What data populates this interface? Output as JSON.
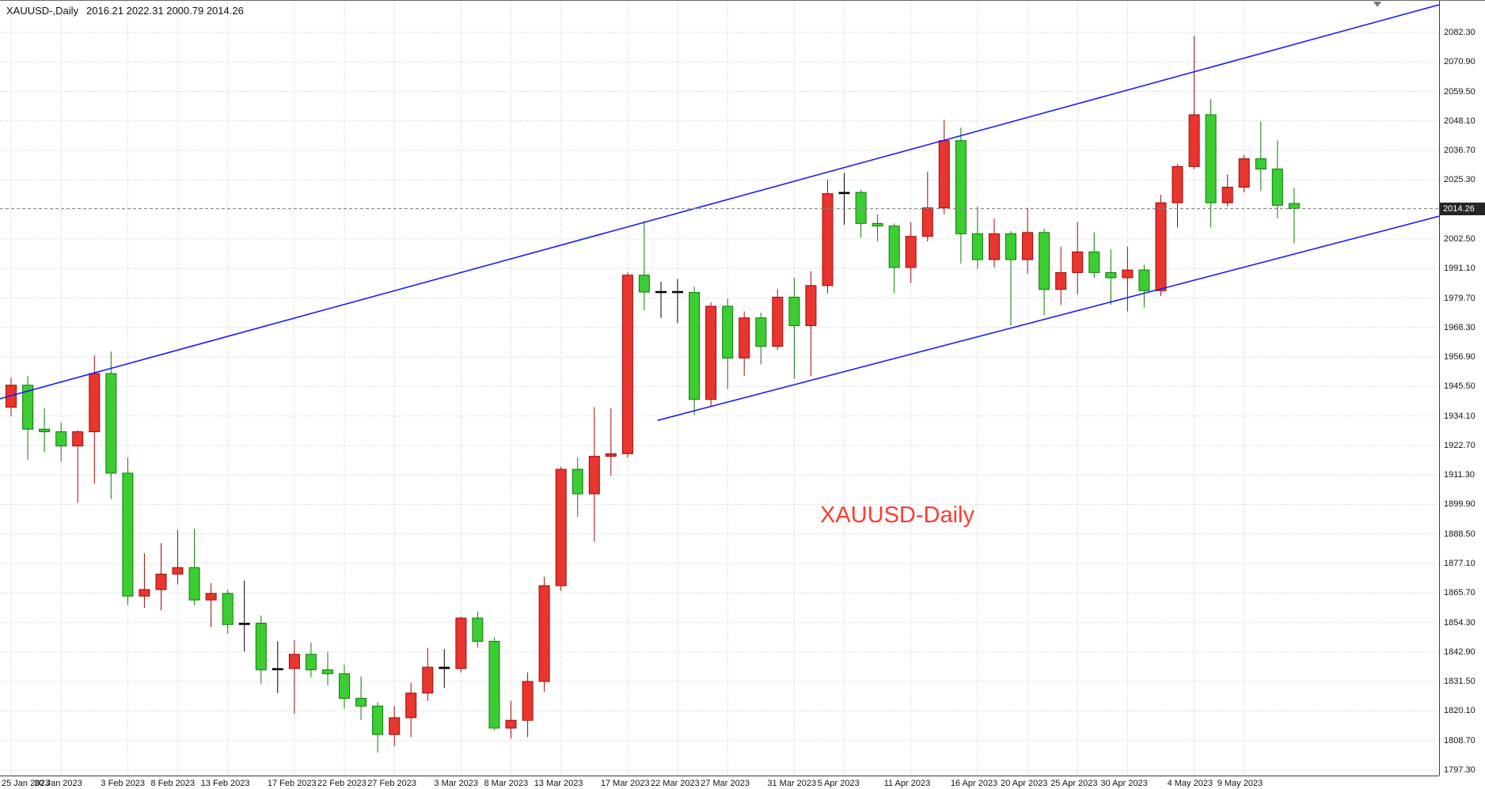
{
  "window": {
    "title_symbol": "XAUUSD-,Daily",
    "title_ohlc": "2016.21 2022.31 2000.79 2014.26"
  },
  "price_axis": {
    "current_price": "2014.26"
  },
  "chart_data": {
    "type": "candlestick",
    "symbol": "XAUUSD",
    "timeframe": "Daily",
    "annotation": {
      "text": "XAUUSD-Daily",
      "color": "#ff3b2e"
    },
    "current_bar_ohlc": {
      "open": 2016.21,
      "high": 2022.31,
      "low": 2000.79,
      "close": 2014.26
    },
    "ylim": [
      1795.1,
      2094.5
    ],
    "grid_price_step": 11.4,
    "grid": true,
    "legend": false,
    "price_ticks": [
      "2082.30",
      "2070.90",
      "2059.50",
      "2048.10",
      "2036.70",
      "2025.30",
      "2013.90",
      "2002.50",
      "1991.10",
      "1979.70",
      "1968.30",
      "1956.90",
      "1945.50",
      "1934.10",
      "1922.70",
      "1911.30",
      "1899.90",
      "1888.50",
      "1877.10",
      "1865.70",
      "1854.30",
      "1842.90",
      "1831.50",
      "1820.10",
      "1808.70",
      "1797.30"
    ],
    "time_labels": [
      {
        "text": "25 Jan 2023",
        "index": 0
      },
      {
        "text": "30 Jan 2023",
        "index": 3
      },
      {
        "text": "3 Feb 2023",
        "index": 7
      },
      {
        "text": "8 Feb 2023",
        "index": 10
      },
      {
        "text": "13 Feb 2023",
        "index": 13
      },
      {
        "text": "17 Feb 2023",
        "index": 17
      },
      {
        "text": "22 Feb 2023",
        "index": 20
      },
      {
        "text": "27 Feb 2023",
        "index": 23
      },
      {
        "text": "3 Mar 2023",
        "index": 27
      },
      {
        "text": "8 Mar 2023",
        "index": 30
      },
      {
        "text": "13 Mar 2023",
        "index": 33
      },
      {
        "text": "17 Mar 2023",
        "index": 37
      },
      {
        "text": "22 Mar 2023",
        "index": 40
      },
      {
        "text": "27 Mar 2023",
        "index": 43
      },
      {
        "text": "31 Mar 2023",
        "index": 47
      },
      {
        "text": "5 Apr 2023",
        "index": 50
      },
      {
        "text": "11 Apr 2023",
        "index": 54
      },
      {
        "text": "16 Apr 2023",
        "index": 58
      },
      {
        "text": "20 Apr 2023",
        "index": 61
      },
      {
        "text": "25 Apr 2023",
        "index": 64
      },
      {
        "text": "30 Apr 2023",
        "index": 67
      },
      {
        "text": "4 May 2023",
        "index": 71
      },
      {
        "text": "9 May 2023",
        "index": 74
      }
    ],
    "candles": [
      [
        1937.5,
        1949.0,
        1934.0,
        1946.0
      ],
      [
        1946.0,
        1949.5,
        1917.0,
        1929.0
      ],
      [
        1929.0,
        1937.0,
        1920.0,
        1928.0
      ],
      [
        1928.0,
        1931.5,
        1916.5,
        1922.5
      ],
      [
        1922.5,
        1928.5,
        1900.5,
        1928.0
      ],
      [
        1928.0,
        1957.5,
        1908.0,
        1950.5
      ],
      [
        1950.5,
        1959.0,
        1902.0,
        1912.0
      ],
      [
        1912.0,
        1918.0,
        1861.0,
        1864.5
      ],
      [
        1864.5,
        1881.0,
        1860.0,
        1867.0
      ],
      [
        1867.0,
        1885.0,
        1859.0,
        1873.0
      ],
      [
        1873.0,
        1890.0,
        1869.0,
        1875.5
      ],
      [
        1875.5,
        1890.5,
        1861.0,
        1863.0
      ],
      [
        1863.0,
        1869.5,
        1852.5,
        1865.5
      ],
      [
        1865.5,
        1867.0,
        1850.0,
        1853.5
      ],
      [
        1853.5,
        1870.5,
        1843.0,
        1854.0
      ],
      [
        1854.0,
        1857.0,
        1830.5,
        1836.0
      ],
      [
        1836.0,
        1847.0,
        1827.0,
        1836.5
      ],
      [
        1836.5,
        1847.5,
        1819.0,
        1842.0
      ],
      [
        1842.0,
        1846.5,
        1833.0,
        1836.0
      ],
      [
        1836.0,
        1843.0,
        1830.0,
        1834.5
      ],
      [
        1834.5,
        1838.0,
        1821.0,
        1825.0
      ],
      [
        1825.0,
        1833.5,
        1816.5,
        1822.0
      ],
      [
        1822.0,
        1823.5,
        1804.0,
        1811.0
      ],
      [
        1811.0,
        1822.0,
        1806.5,
        1817.5
      ],
      [
        1817.5,
        1831.0,
        1810.0,
        1827.0
      ],
      [
        1827.0,
        1844.5,
        1824.0,
        1837.0
      ],
      [
        1837.0,
        1844.0,
        1829.0,
        1836.5
      ],
      [
        1836.5,
        1856.5,
        1835.0,
        1856.0
      ],
      [
        1856.0,
        1858.5,
        1844.5,
        1847.0
      ],
      [
        1847.0,
        1848.5,
        1812.5,
        1813.5
      ],
      [
        1813.5,
        1824.0,
        1809.5,
        1816.5
      ],
      [
        1816.5,
        1835.0,
        1810.0,
        1831.5
      ],
      [
        1831.5,
        1872.0,
        1827.5,
        1868.5
      ],
      [
        1868.5,
        1914.5,
        1866.5,
        1913.5
      ],
      [
        1913.5,
        1918.0,
        1895.0,
        1904.0
      ],
      [
        1904.0,
        1937.5,
        1885.5,
        1918.5
      ],
      [
        1918.5,
        1937.0,
        1911.0,
        1919.5
      ],
      [
        1919.5,
        1989.5,
        1918.0,
        1988.5
      ],
      [
        1988.5,
        2009.5,
        1975.0,
        1982.0
      ],
      [
        1982.0,
        1986.0,
        1972.0,
        1982.2
      ],
      [
        1982.2,
        1987.0,
        1970.0,
        1981.8
      ],
      [
        1981.8,
        1984.0,
        1934.5,
        1940.5
      ],
      [
        1940.5,
        1978.0,
        1938.0,
        1976.5
      ],
      [
        1976.5,
        1979.5,
        1944.5,
        1956.5
      ],
      [
        1956.5,
        1974.5,
        1949.5,
        1972.0
      ],
      [
        1972.0,
        1974.0,
        1954.0,
        1961.0
      ],
      [
        1961.0,
        1983.0,
        1959.5,
        1980.0
      ],
      [
        1980.0,
        1987.5,
        1948.5,
        1969.0
      ],
      [
        1969.0,
        1990.0,
        1949.5,
        1984.5
      ],
      [
        1984.5,
        2025.5,
        1981.5,
        2020.0
      ],
      [
        2020.0,
        2028.0,
        2008.0,
        2020.5
      ],
      [
        2020.5,
        2021.5,
        2003.0,
        2008.5
      ],
      [
        2008.5,
        2012.0,
        2001.5,
        2007.5
      ],
      [
        2007.5,
        2008.5,
        1981.5,
        1991.5
      ],
      [
        1991.5,
        2009.0,
        1985.5,
        2003.5
      ],
      [
        2003.5,
        2028.5,
        2001.5,
        2014.5
      ],
      [
        2014.5,
        2048.5,
        2012.0,
        2040.5
      ],
      [
        2040.5,
        2045.5,
        1993.0,
        2004.5
      ],
      [
        2004.5,
        2015.0,
        1991.0,
        1994.5
      ],
      [
        1994.5,
        2010.5,
        1991.5,
        2004.5
      ],
      [
        2004.5,
        2005.5,
        1969.0,
        1994.5
      ],
      [
        1994.5,
        2014.5,
        1989.0,
        2005.0
      ],
      [
        2005.0,
        2006.5,
        1973.0,
        1983.0
      ],
      [
        1983.0,
        1999.5,
        1977.0,
        1989.5
      ],
      [
        1989.5,
        2009.0,
        1981.0,
        1997.5
      ],
      [
        1997.5,
        2005.0,
        1987.5,
        1989.5
      ],
      [
        1989.5,
        1998.5,
        1977.0,
        1987.5
      ],
      [
        1987.5,
        1999.5,
        1974.5,
        1990.5
      ],
      [
        1990.5,
        1992.5,
        1976.0,
        1982.5
      ],
      [
        1982.5,
        2019.5,
        1980.5,
        2016.5
      ],
      [
        2016.5,
        2031.5,
        2007.0,
        2030.5
      ],
      [
        2030.5,
        2081.0,
        2029.5,
        2050.5
      ],
      [
        2050.5,
        2056.5,
        2007.0,
        2016.5
      ],
      [
        2016.5,
        2027.5,
        2015.0,
        2022.5
      ],
      [
        2022.5,
        2035.0,
        2020.5,
        2033.5
      ],
      [
        2033.5,
        2048.0,
        2021.0,
        2029.5
      ],
      [
        2029.5,
        2040.5,
        2010.5,
        2015.5
      ],
      [
        2016.21,
        2022.31,
        2000.79,
        2014.26
      ]
    ],
    "trend_channel": {
      "color": "#1a1aff",
      "upper": {
        "start_index": -0.7,
        "start_price": 1940.7,
        "end_index": 85.7,
        "end_price": 2093.0
      },
      "lower": {
        "start_index": 38.8,
        "start_price": 1932.4,
        "end_index": 85.7,
        "end_price": 2011.3
      }
    },
    "colors": {
      "bull": "#e8352e",
      "bull_dark": "#9e0b0b",
      "bear": "#3bcd32",
      "bear_dark": "#117a0a",
      "doji": "#000000",
      "grid": "#c9c9c9",
      "price_line": "#8a8a8a",
      "background": "#ffffff"
    }
  }
}
